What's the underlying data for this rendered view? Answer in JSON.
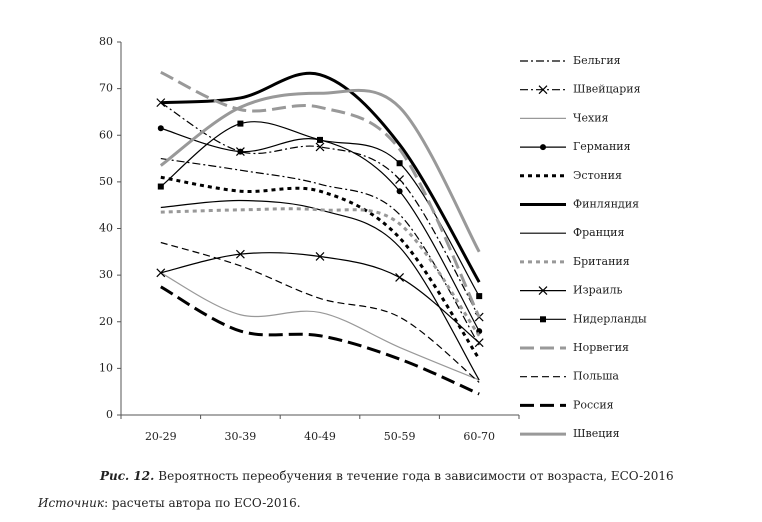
{
  "chart_data": {
    "type": "line",
    "categories": [
      "20-29",
      "30-39",
      "40-49",
      "50-59",
      "60-70"
    ],
    "ylim": [
      0,
      80
    ],
    "yticks": [
      0,
      10,
      20,
      30,
      40,
      50,
      60,
      70,
      80
    ],
    "series": [
      {
        "name": "Бельгия",
        "color": "#000000",
        "style": "dash-dot",
        "weight": "thin",
        "values": [
          55,
          52.5,
          49.5,
          43,
          15
        ]
      },
      {
        "name": "Швейцария",
        "color": "#000000",
        "style": "dash-dot",
        "weight": "thin",
        "marker": "x",
        "values": [
          67,
          56.5,
          57.5,
          50.5,
          21
        ]
      },
      {
        "name": "Чехия",
        "color": "#999999",
        "style": "solid",
        "weight": "thin",
        "values": [
          30.5,
          21.5,
          22,
          14.5,
          7.5
        ]
      },
      {
        "name": "Германия",
        "color": "#000000",
        "style": "solid",
        "weight": "thin",
        "marker": "circle",
        "values": [
          61.5,
          56.5,
          59,
          48,
          18
        ]
      },
      {
        "name": "Эстония",
        "color": "#000000",
        "style": "dot",
        "weight": "thick",
        "values": [
          51,
          48,
          48,
          38,
          12
        ]
      },
      {
        "name": "Финляндия",
        "color": "#000000",
        "style": "solid",
        "weight": "thick",
        "values": [
          67,
          68,
          73,
          58,
          28.5
        ]
      },
      {
        "name": "Франция",
        "color": "#000000",
        "style": "solid",
        "weight": "thin",
        "values": [
          44.5,
          46,
          44,
          36,
          7.5
        ]
      },
      {
        "name": "Британия",
        "color": "#999999",
        "style": "dot",
        "weight": "thick",
        "values": [
          43.5,
          44,
          44,
          41,
          17
        ]
      },
      {
        "name": "Израиль",
        "color": "#000000",
        "style": "solid",
        "weight": "thin",
        "marker": "x",
        "values": [
          30.5,
          34.5,
          34,
          29.5,
          15.5
        ]
      },
      {
        "name": "Нидерланды",
        "color": "#000000",
        "style": "solid",
        "weight": "thin",
        "marker": "square",
        "values": [
          49,
          62.5,
          59,
          54,
          25.5
        ]
      },
      {
        "name": "Норвегия",
        "color": "#999999",
        "style": "dash",
        "weight": "thick",
        "values": [
          73.5,
          65.5,
          66,
          57,
          21
        ]
      },
      {
        "name": "Польша",
        "color": "#000000",
        "style": "dash",
        "weight": "thin",
        "values": [
          37,
          32,
          25,
          21,
          7
        ]
      },
      {
        "name": "Россия",
        "color": "#000000",
        "style": "dash",
        "weight": "thick",
        "values": [
          27.5,
          18,
          17,
          12,
          4.5
        ]
      },
      {
        "name": "Швеция",
        "color": "#999999",
        "style": "solid",
        "weight": "thick",
        "values": [
          53.5,
          66,
          69,
          66,
          35
        ]
      }
    ]
  },
  "caption": {
    "label": "Рис. 12.",
    "text": "Вероятность переобучения в течение года в зависимости от возраста, ECO-2016"
  },
  "source": {
    "label": "Источник",
    "text": ": расчеты автора по ECO-2016."
  }
}
